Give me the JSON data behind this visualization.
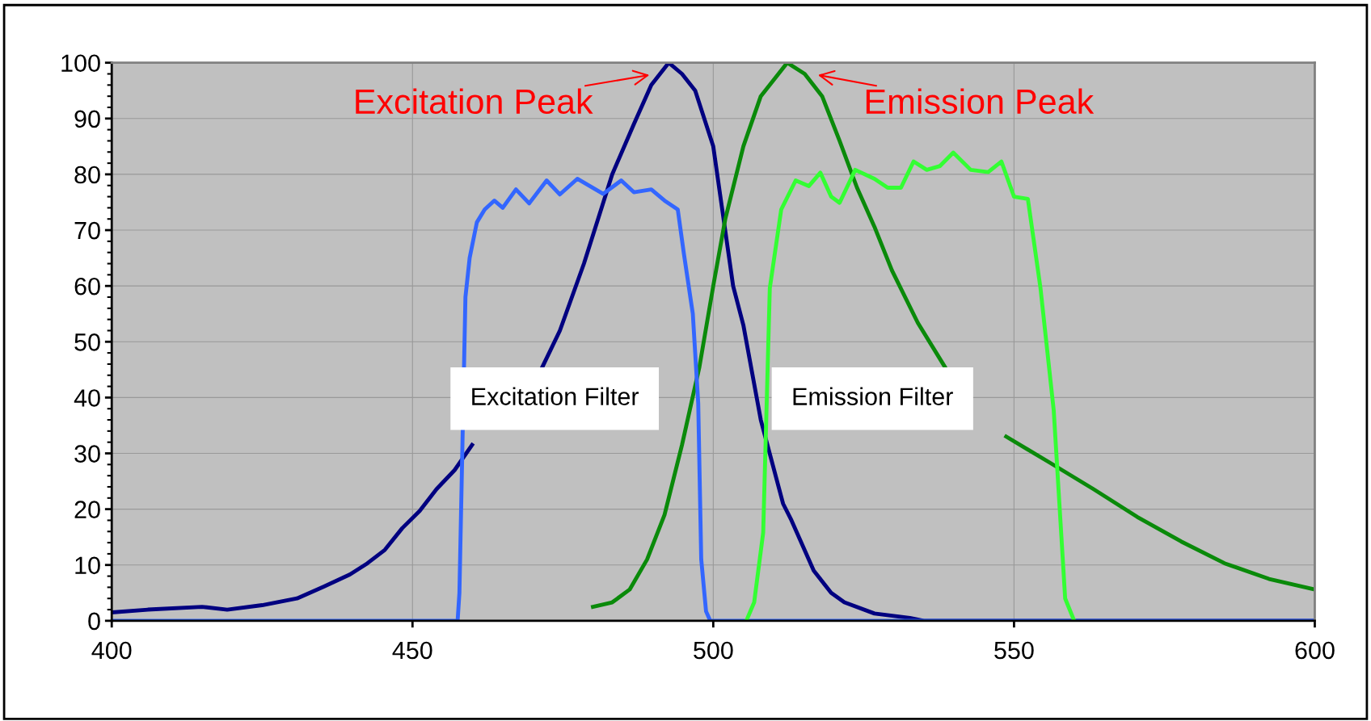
{
  "chart_data": {
    "type": "line",
    "series": [
      {
        "color": "#000080",
        "x": [
          400,
          406,
          415,
          419.2,
          425,
          430.8,
          435.2,
          439.6,
          442.5,
          445.4,
          448.3,
          451.2,
          454,
          457,
          459.9,
          465,
          468.7,
          471.6,
          474.5,
          478.5,
          483.2,
          486.8,
          489.7,
          492.6,
          494.8,
          497,
          500,
          503.3,
          505,
          507.9,
          511.6,
          513,
          516.7,
          519.6,
          521.8,
          526.8,
          532.7,
          535,
          600
        ],
        "values": [
          1.5,
          2,
          2.5,
          2,
          2.8,
          4,
          6.1,
          8.3,
          10.3,
          12.7,
          16.6,
          19.7,
          23.6,
          27,
          31.5,
          null,
          null,
          45.5,
          52,
          64,
          80,
          89,
          96,
          100,
          98,
          95,
          85,
          60,
          53,
          36,
          21,
          18,
          9,
          5,
          3.3,
          1.3,
          0.5,
          0,
          0
        ]
      },
      {
        "color": "#0a8a0a",
        "x": [
          480,
          483.2,
          486.1,
          489,
          491.9,
          494.8,
          497.7,
          500,
          502,
          505,
          507.9,
          512.3,
          515.2,
          518.1,
          521,
          523.9,
          526.8,
          529.7,
          534,
          538.5,
          542.8,
          548.7,
          556,
          563.2,
          570.5,
          577.8,
          585,
          592.4,
          600
        ],
        "values": [
          2.5,
          3.3,
          5.6,
          11,
          19,
          31.5,
          45.5,
          60,
          72,
          85,
          94,
          100,
          98,
          94,
          86,
          77.6,
          70.6,
          62.8,
          53.4,
          45.5,
          null,
          33,
          28.3,
          23.6,
          18.6,
          14.2,
          10.3,
          7.5,
          5.6
        ]
      },
      {
        "color": "#3366ff",
        "x": [
          400,
          457.5,
          457.8,
          458.8,
          459.5,
          460.7,
          462,
          463.6,
          465,
          467.2,
          469.4,
          472.3,
          474.5,
          477.4,
          481.7,
          484.7,
          486.8,
          489.7,
          491.9,
          494.1,
          495.1,
          496.6,
          497.5,
          498,
          498.8,
          499.5,
          600
        ],
        "values": [
          0,
          0,
          5,
          58,
          65,
          71.4,
          73.7,
          75.3,
          74,
          77.3,
          74.8,
          78.9,
          76.4,
          79.2,
          76.5,
          78.9,
          76.8,
          77.3,
          75.3,
          73.7,
          65.9,
          55,
          39,
          11,
          1.7,
          0,
          0
        ]
      },
      {
        "color": "#33ff33",
        "x": [
          505.5,
          506.8,
          508.3,
          509.4,
          511.3,
          513.7,
          515.9,
          517.8,
          519.6,
          521,
          523.6,
          526.8,
          529,
          531.2,
          533.3,
          535.5,
          537.7,
          539.9,
          542.8,
          545.7,
          547.9,
          550,
          552.3,
          554.4,
          556.6,
          558.5,
          560
        ],
        "values": [
          0,
          3.3,
          15.8,
          59.6,
          73.7,
          78.9,
          77.9,
          80.3,
          76,
          74.9,
          80.8,
          79.2,
          77.6,
          77.6,
          82.3,
          80.8,
          81.5,
          83.9,
          80.8,
          80.4,
          82.3,
          76,
          75.6,
          59.6,
          37.7,
          4,
          0
        ]
      }
    ],
    "annotations": [
      "Excitation Peak",
      "Emission Peak",
      "Excitation Filter",
      "Emission Filter"
    ],
    "xlim": [
      400,
      600
    ],
    "xticks": [
      400,
      450,
      500,
      550,
      600
    ],
    "ylim": [
      0,
      100
    ],
    "yticks": [
      0,
      10,
      20,
      30,
      40,
      50,
      60,
      70,
      80,
      90,
      100
    ],
    "grid": true,
    "marker": "none",
    "line_style": "solid"
  }
}
